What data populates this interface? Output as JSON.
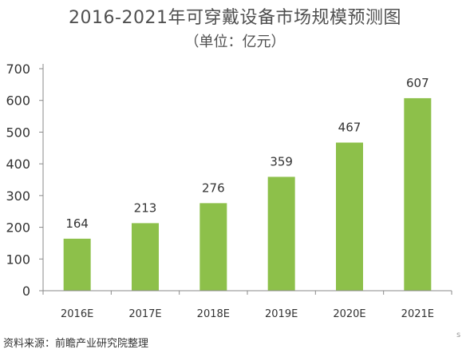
{
  "chart_data": {
    "type": "bar",
    "title": "2016-2021年可穿戴设备市场规模预测图",
    "subtitle": "（单位：亿元）",
    "categories": [
      "2016E",
      "2017E",
      "2018E",
      "2019E",
      "2020E",
      "2021E"
    ],
    "values": [
      164,
      213,
      276,
      359,
      467,
      607
    ],
    "ylim": [
      0,
      700
    ],
    "yticks": [
      0,
      100,
      200,
      300,
      400,
      500,
      600,
      700
    ],
    "xlabel": "",
    "ylabel": "",
    "grid": false,
    "bar_color": "#8dc04a",
    "axis_color": "#8a8a8a"
  },
  "footer": {
    "source": "资料来源：前瞻产业研究院整理",
    "edge_mark": "s"
  }
}
